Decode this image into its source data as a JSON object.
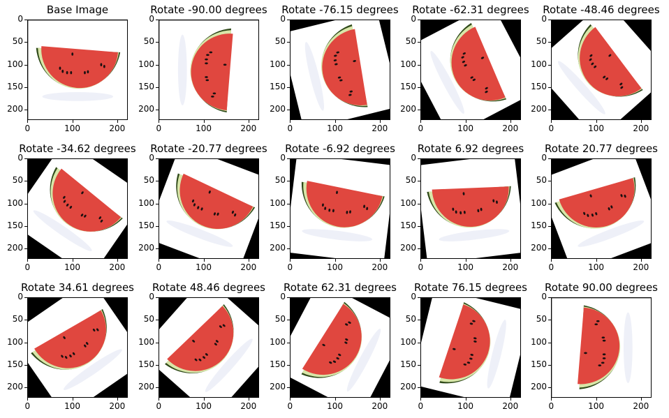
{
  "chart_data": {
    "type": "image-grid",
    "image_size": [
      224,
      224
    ],
    "xticks": [
      0,
      100,
      200
    ],
    "yticks": [
      0,
      50,
      100,
      150,
      200
    ],
    "panels": [
      {
        "title": "Base Image",
        "angle": 0
      },
      {
        "title": "Rotate -90.00 degrees",
        "angle": -90.0
      },
      {
        "title": "Rotate -76.15 degrees",
        "angle": -76.15
      },
      {
        "title": "Rotate -62.31 degrees",
        "angle": -62.31
      },
      {
        "title": "Rotate -48.46 degrees",
        "angle": -48.46
      },
      {
        "title": "Rotate -34.62 degrees",
        "angle": -34.62
      },
      {
        "title": "Rotate -20.77 degrees",
        "angle": -20.77
      },
      {
        "title": "Rotate -6.92 degrees",
        "angle": -6.92
      },
      {
        "title": "Rotate 6.92 degrees",
        "angle": 6.92
      },
      {
        "title": "Rotate 20.77 degrees",
        "angle": 20.77
      },
      {
        "title": "Rotate 34.61 degrees",
        "angle": 34.61
      },
      {
        "title": "Rotate 48.46 degrees",
        "angle": 48.46
      },
      {
        "title": "Rotate 62.31 degrees",
        "angle": 62.31
      },
      {
        "title": "Rotate 76.15 degrees",
        "angle": 76.15
      },
      {
        "title": "Rotate 90.00 degrees",
        "angle": 90.0
      }
    ],
    "colors": {
      "flesh": "#e0473f",
      "rind_outer": "#2f4a1a",
      "rind_inner": "#d8e6a8",
      "seed": "#1a1010",
      "corner": "#000000"
    }
  }
}
